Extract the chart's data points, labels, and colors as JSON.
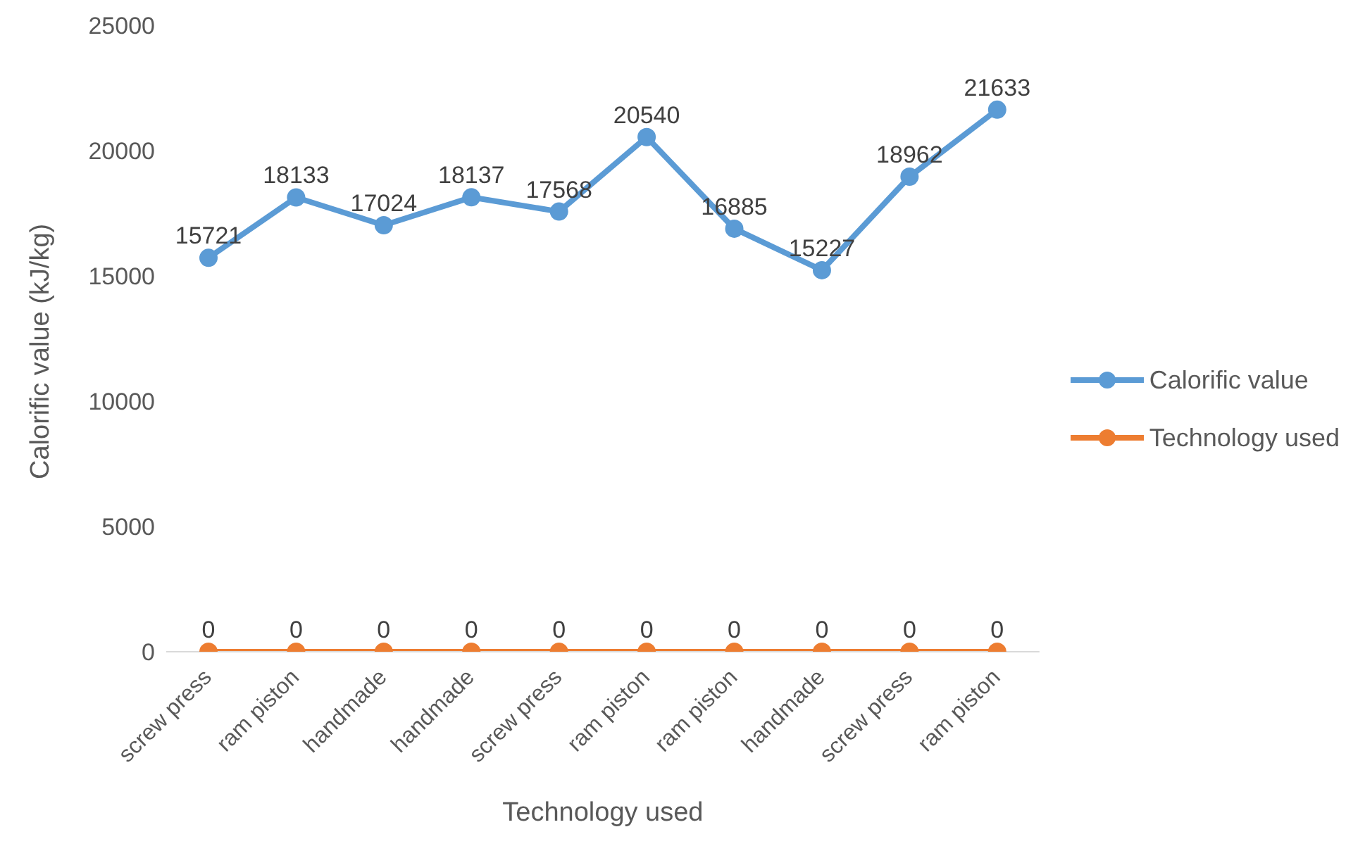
{
  "chart_data": {
    "type": "line",
    "xlabel": "Technology used",
    "ylabel": "Calorific value (kJ/kg)",
    "categories": [
      "screw press",
      "ram piston",
      "handmade",
      "handmade",
      "screw press",
      "ram piston",
      "ram piston",
      "handmade",
      "screw press",
      "ram piston"
    ],
    "series": [
      {
        "name": "Calorific value",
        "color": "#5b9bd5",
        "values": [
          15721,
          18133,
          17024,
          18137,
          17568,
          20540,
          16885,
          15227,
          18962,
          21633
        ]
      },
      {
        "name": "Technology used",
        "color": "#ed7d31",
        "values": [
          0,
          0,
          0,
          0,
          0,
          0,
          0,
          0,
          0,
          0
        ]
      }
    ],
    "ylim": [
      0,
      25000
    ],
    "yticks": [
      0,
      5000,
      10000,
      15000,
      20000,
      25000
    ],
    "grid": false,
    "legend": "right",
    "marker": "circle",
    "data_labels": true
  }
}
